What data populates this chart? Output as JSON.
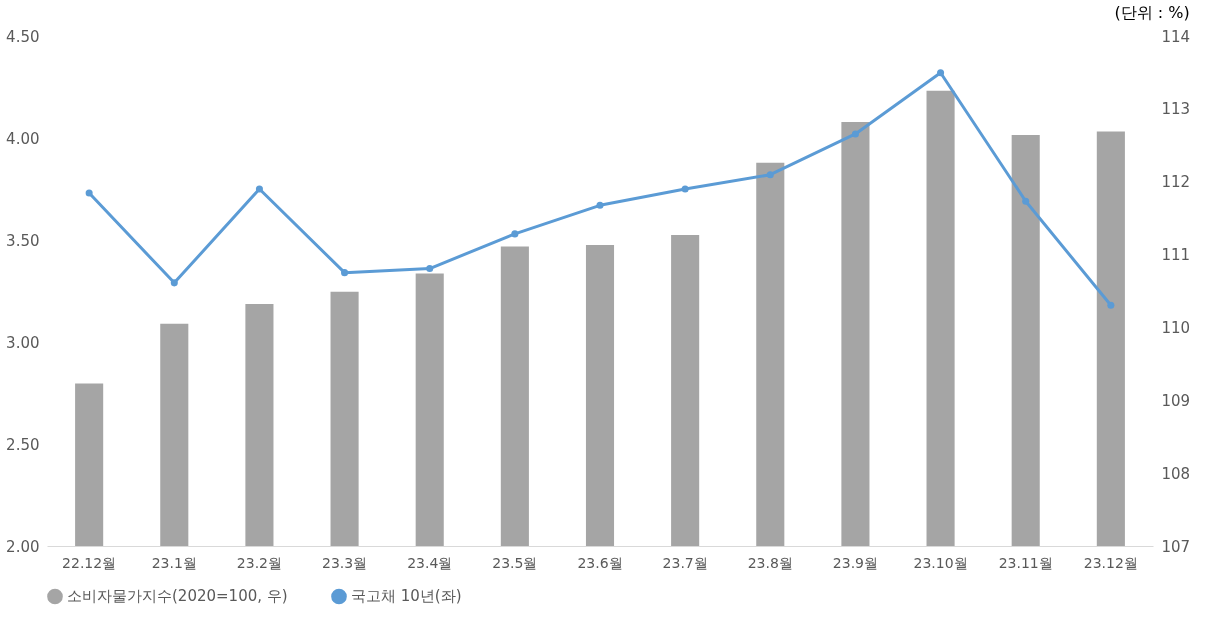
{
  "chart_data": {
    "type": "bar",
    "categories": [
      "22.12월",
      "23.1월",
      "23.2월",
      "23.3월",
      "23.4월",
      "23.5월",
      "23.6월",
      "23.7월",
      "23.8월",
      "23.9월",
      "23.10월",
      "23.11월",
      "23.12월"
    ],
    "series": [
      {
        "name": "소비자물가지수(2020=100, 우)",
        "axis": "y2",
        "color": "#a5a5a5",
        "values": [
          109.23,
          110.05,
          110.32,
          110.49,
          110.74,
          111.11,
          111.13,
          111.27,
          112.26,
          112.82,
          113.25,
          112.64,
          112.69
        ]
      },
      {
        "name": "국고채 10년(좌)",
        "type": "line",
        "color": "#5b9bd5",
        "values": [
          3.73,
          3.29,
          3.75,
          3.34,
          3.36,
          3.53,
          3.67,
          3.75,
          3.82,
          4.02,
          4.32,
          3.69,
          3.18
        ]
      }
    ],
    "ylim": [
      2,
      4.5
    ],
    "yticks": [
      {
        "value": 2,
        "label": "2.00"
      },
      {
        "value": 2.5,
        "label": "2.50"
      },
      {
        "value": 3,
        "label": "3.00"
      },
      {
        "value": 3.5,
        "label": "3.50"
      },
      {
        "value": 4,
        "label": "4.00"
      },
      {
        "value": 4.5,
        "label": "4.50"
      }
    ],
    "y2lim": [
      107,
      114
    ],
    "y2ticks": [
      107,
      108,
      109,
      110,
      111,
      112,
      113,
      114
    ],
    "annotations": [
      "(단위 : %)"
    ],
    "legend": "bottom",
    "marker": "circle",
    "grid": false
  }
}
